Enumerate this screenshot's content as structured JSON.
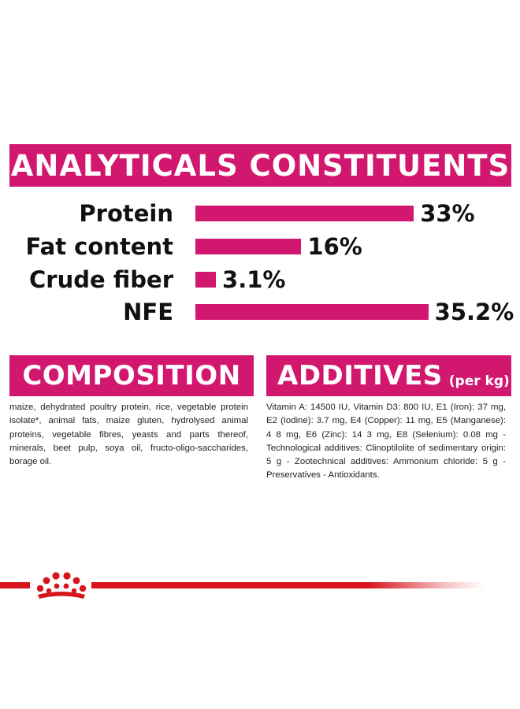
{
  "colors": {
    "accent": "#d2176e",
    "footer_red": "#d7141b"
  },
  "analytics": {
    "title": "ANALYTICALS CONSTITUENTS",
    "rows": [
      {
        "label": "Protein",
        "value_text": "33%",
        "value": 33.0
      },
      {
        "label": "Fat content",
        "value_text": "16%",
        "value": 16.0
      },
      {
        "label": "Crude fiber",
        "value_text": "3.1%",
        "value": 3.1
      },
      {
        "label": "NFE",
        "value_text": "35.2%",
        "value": 35.2
      }
    ]
  },
  "composition": {
    "title": "COMPOSITION",
    "text": "maize, dehydrated poultry protein, rice, vegetable protein isolate*, animal fats, maize gluten, hydrolysed animal proteins, vegetable fibres, yeasts and parts thereof, minerals, beet pulp, soya oil, fructo-oligo-saccharides, borage oil."
  },
  "additives": {
    "title": "ADDITIVES",
    "subtitle": "(per kg)",
    "text": "Vitamin A: 14500 IU, Vitamin D3: 800 IU, E1 (Iron): 37 mg, E2 (Iodine): 3.7 mg, E4 (Copper): 11 mg, E5 (Manganese): 4 8 mg, E6 (Zinc): 14 3 mg, E8 (Selenium): 0.08 mg -Technological additives: Clinoptilolite of sedimentary origin: 5 g - Zootechnical additives: Ammonium chloride: 5 g - Preservatives - Antioxidants."
  },
  "footer": {
    "logo_icon": "royal-canin-crown-icon"
  }
}
